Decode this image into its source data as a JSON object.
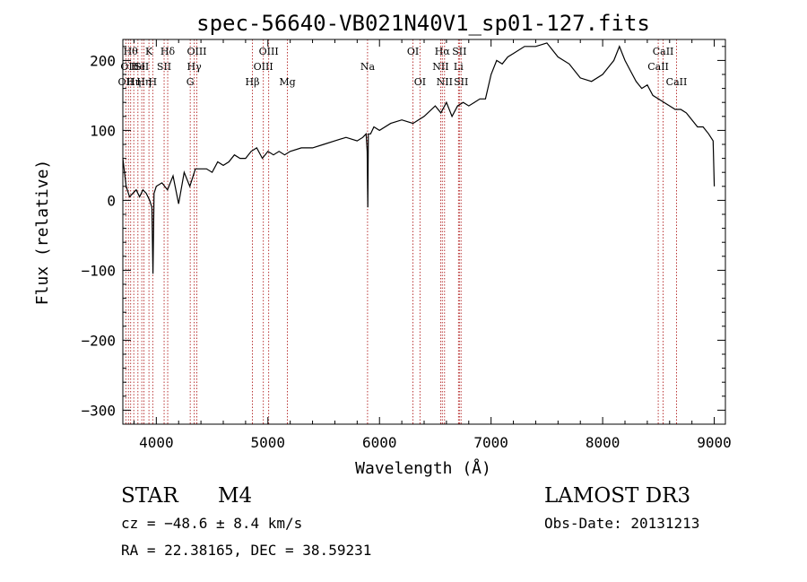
{
  "chart_data": {
    "type": "line",
    "title": "spec-56640-VB021N40V1_sp01-127.fits",
    "xlabel": "Wavelength (Å)",
    "ylabel": "Flux (relative)",
    "xlim": [
      3700,
      9100
    ],
    "ylim": [
      -320,
      230
    ],
    "x_ticks": [
      4000,
      5000,
      6000,
      7000,
      8000,
      9000
    ],
    "y_ticks": [
      200,
      100,
      0,
      -100,
      -200,
      -300
    ],
    "x_tick_labels": [
      "4000",
      "5000",
      "6000",
      "7000",
      "8000",
      "9000"
    ],
    "y_tick_labels": [
      "200",
      "100",
      "0",
      "−100",
      "−200",
      "−300"
    ],
    "grid": false,
    "legend": "none",
    "series": [
      {
        "name": "spectrum",
        "x": [
          3700,
          3730,
          3760,
          3790,
          3820,
          3850,
          3880,
          3910,
          3940,
          3960,
          3970,
          3980,
          4000,
          4050,
          4100,
          4150,
          4200,
          4250,
          4300,
          4350,
          4400,
          4450,
          4500,
          4550,
          4600,
          4650,
          4700,
          4750,
          4800,
          4850,
          4900,
          4950,
          5000,
          5050,
          5100,
          5150,
          5200,
          5300,
          5400,
          5500,
          5600,
          5700,
          5800,
          5850,
          5880,
          5890,
          5895,
          5900,
          5910,
          5920,
          5950,
          6000,
          6100,
          6200,
          6300,
          6400,
          6500,
          6550,
          6600,
          6650,
          6700,
          6750,
          6800,
          6850,
          6900,
          6950,
          7000,
          7050,
          7100,
          7150,
          7200,
          7300,
          7400,
          7500,
          7600,
          7700,
          7800,
          7900,
          8000,
          8050,
          8100,
          8150,
          8200,
          8250,
          8300,
          8350,
          8400,
          8450,
          8500,
          8550,
          8600,
          8650,
          8700,
          8750,
          8800,
          8850,
          8900,
          8950,
          8990,
          9000
        ],
        "y": [
          60,
          20,
          5,
          10,
          15,
          5,
          15,
          10,
          0,
          -10,
          -105,
          10,
          20,
          25,
          15,
          35,
          -5,
          40,
          20,
          45,
          45,
          45,
          40,
          55,
          50,
          55,
          65,
          60,
          60,
          70,
          75,
          60,
          70,
          65,
          70,
          65,
          70,
          75,
          75,
          80,
          85,
          90,
          85,
          90,
          95,
          70,
          -10,
          95,
          95,
          95,
          105,
          100,
          110,
          115,
          110,
          120,
          135,
          125,
          140,
          120,
          135,
          140,
          135,
          140,
          145,
          145,
          180,
          200,
          195,
          205,
          210,
          220,
          220,
          225,
          205,
          195,
          175,
          170,
          180,
          190,
          200,
          220,
          200,
          185,
          170,
          160,
          165,
          150,
          145,
          140,
          135,
          130,
          130,
          125,
          115,
          105,
          105,
          95,
          85,
          20
        ]
      }
    ],
    "lines": [
      {
        "wl": 3727,
        "label": "OII",
        "row": 2
      },
      {
        "wl": 3750,
        "label": "OII",
        "row": 1
      },
      {
        "wl": 3770,
        "label": "Hθ",
        "row": 0
      },
      {
        "wl": 3798,
        "label": "Hη",
        "row": 2
      },
      {
        "wl": 3835,
        "label": "He",
        "row": 1
      },
      {
        "wl": 3870,
        "label": "SII",
        "row": 1
      },
      {
        "wl": 3889,
        "label": "Hη",
        "row": 2
      },
      {
        "wl": 3934,
        "label": "K",
        "row": 0
      },
      {
        "wl": 3968,
        "label": "H",
        "row": 2
      },
      {
        "wl": 4070,
        "label": "SII",
        "row": 1
      },
      {
        "wl": 4102,
        "label": "Hδ",
        "row": 0
      },
      {
        "wl": 4304,
        "label": "G",
        "row": 2
      },
      {
        "wl": 4340,
        "label": "Hγ",
        "row": 1
      },
      {
        "wl": 4363,
        "label": "OIII",
        "row": 0
      },
      {
        "wl": 4861,
        "label": "Hβ",
        "row": 2
      },
      {
        "wl": 4959,
        "label": "OIII",
        "row": 1
      },
      {
        "wl": 5007,
        "label": "OIII",
        "row": 0
      },
      {
        "wl": 5175,
        "label": "Mg",
        "row": 2
      },
      {
        "wl": 5893,
        "label": "Na",
        "row": 1
      },
      {
        "wl": 6300,
        "label": "OI",
        "row": 0
      },
      {
        "wl": 6363,
        "label": "OI",
        "row": 2
      },
      {
        "wl": 6548,
        "label": "NII",
        "row": 1
      },
      {
        "wl": 6563,
        "label": "Hα",
        "row": 0
      },
      {
        "wl": 6583,
        "label": "NII",
        "row": 2
      },
      {
        "wl": 6708,
        "label": "Li",
        "row": 1
      },
      {
        "wl": 6716,
        "label": "SII",
        "row": 0
      },
      {
        "wl": 6731,
        "label": "SII",
        "row": 2
      },
      {
        "wl": 8498,
        "label": "CaII",
        "row": 1
      },
      {
        "wl": 8542,
        "label": "CaII",
        "row": 0
      },
      {
        "wl": 8662,
        "label": "CaII",
        "row": 2
      }
    ]
  },
  "info": {
    "class": "STAR",
    "subclass": "M4",
    "survey": "LAMOST DR3",
    "cz": "cz = −48.6 ± 8.4 km/s",
    "obs_date": "Obs-Date: 20131213",
    "coords": "RA =  22.38165, DEC =  38.59231"
  }
}
